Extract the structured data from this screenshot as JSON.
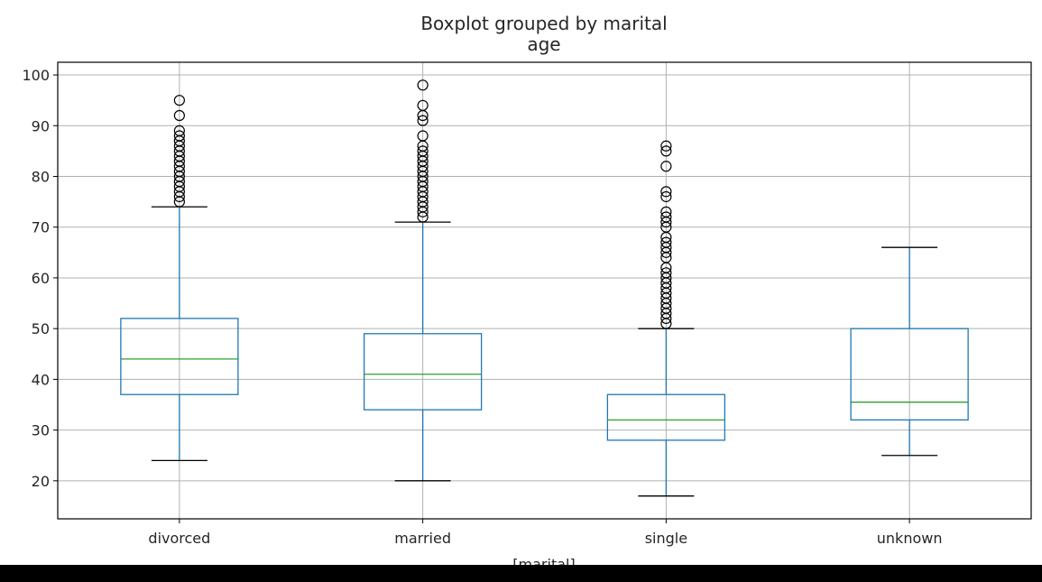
{
  "chart_data": {
    "type": "boxplot",
    "suptitle": "Boxplot grouped by marital",
    "title": "age",
    "xlabel": "[marital]",
    "ylabel": "",
    "categories": [
      "divorced",
      "married",
      "single",
      "unknown"
    ],
    "ylim": [
      12.5,
      102.5
    ],
    "yticks": [
      20,
      30,
      40,
      50,
      60,
      70,
      80,
      90,
      100
    ],
    "grid": true,
    "colors": {
      "box": "#1f77b4",
      "median": "#2ca02c",
      "cap": "#000000",
      "flier": "#000000",
      "grid": "#b0b0b0"
    },
    "boxes": [
      {
        "category": "divorced",
        "whisker_low": 24,
        "q1": 37,
        "median": 44,
        "q3": 52,
        "whisker_high": 74,
        "fliers": [
          75,
          76,
          77,
          78,
          79,
          80,
          81,
          82,
          83,
          84,
          85,
          86,
          87,
          88,
          89,
          92,
          95
        ]
      },
      {
        "category": "married",
        "whisker_low": 20,
        "q1": 34,
        "median": 41,
        "q3": 49,
        "whisker_high": 71,
        "fliers": [
          72,
          73,
          74,
          75,
          76,
          77,
          78,
          79,
          80,
          81,
          82,
          83,
          84,
          85,
          86,
          88,
          91,
          92,
          94,
          98
        ]
      },
      {
        "category": "single",
        "whisker_low": 17,
        "q1": 28,
        "median": 32,
        "q3": 37,
        "whisker_high": 50,
        "fliers": [
          51,
          52,
          53,
          54,
          55,
          56,
          57,
          58,
          59,
          60,
          61,
          62,
          64,
          65,
          66,
          67,
          68,
          70,
          71,
          72,
          73,
          76,
          77,
          82,
          85,
          86
        ]
      },
      {
        "category": "unknown",
        "whisker_low": 25,
        "q1": 32,
        "median": 35.5,
        "q3": 50,
        "whisker_high": 66,
        "fliers": []
      }
    ]
  }
}
